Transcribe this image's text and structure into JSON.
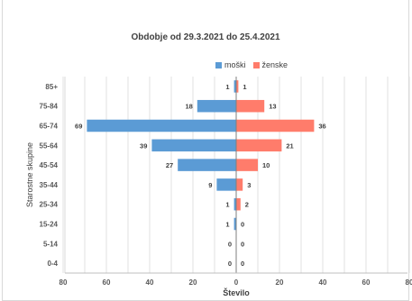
{
  "chart_data": {
    "type": "bar",
    "orientation": "horizontal-population-pyramid",
    "title": "Obdobje od 29.3.2021 do 25.4.2021",
    "xlabel": "Število",
    "ylabel": "Starostne skupine",
    "categories": [
      "85+",
      "75-84",
      "65-74",
      "55-64",
      "45-54",
      "35-44",
      "25-34",
      "15-24",
      "5-14",
      "0-4"
    ],
    "series": [
      {
        "name": "moški",
        "color": "#5b9bd5",
        "values": [
          1,
          18,
          69,
          39,
          27,
          9,
          1,
          1,
          0,
          0
        ]
      },
      {
        "name": "ženske",
        "color": "#ff7c6b",
        "values": [
          1,
          13,
          36,
          21,
          10,
          3,
          2,
          0,
          0,
          0
        ]
      }
    ],
    "xlim": [
      -80,
      80
    ],
    "xticks": [
      "80",
      "60",
      "40",
      "20",
      "0",
      "20",
      "40",
      "60",
      "80"
    ],
    "grid": true,
    "legend_position": "top-right"
  }
}
